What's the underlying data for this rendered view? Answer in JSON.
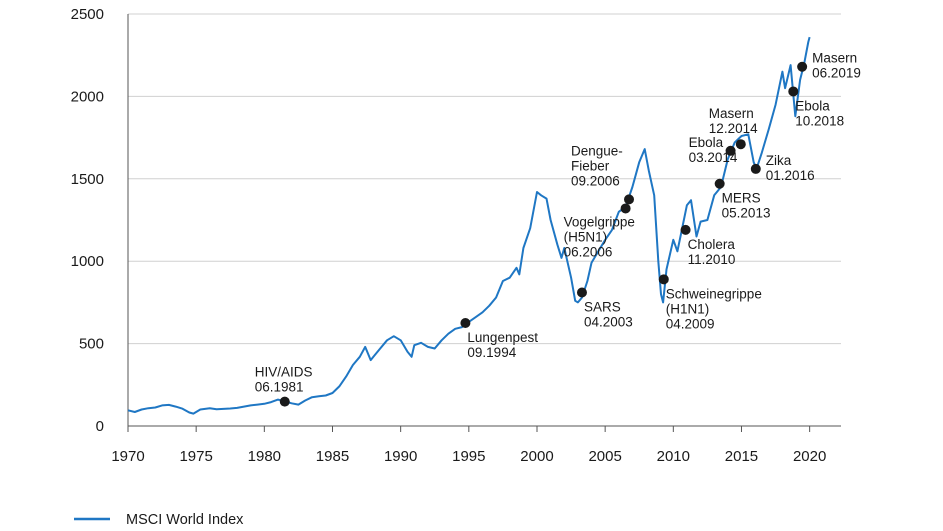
{
  "chart_data": {
    "type": "line",
    "x_ticks": [
      1970,
      1975,
      1980,
      1985,
      1990,
      1995,
      2000,
      2005,
      2010,
      2015,
      2020
    ],
    "y_ticks": [
      0,
      500,
      1000,
      1500,
      2000,
      2500
    ],
    "xlim": [
      1970,
      2022.3
    ],
    "ylim": [
      0,
      2500
    ],
    "grid": "horizontal",
    "legend": "bottom-left",
    "series": [
      {
        "name": "MSCI World Index",
        "color": "#1f77c4",
        "points": [
          [
            1970.0,
            95
          ],
          [
            1970.5,
            85
          ],
          [
            1971.0,
            100
          ],
          [
            1971.5,
            108
          ],
          [
            1972.0,
            112
          ],
          [
            1972.5,
            125
          ],
          [
            1973.0,
            128
          ],
          [
            1973.5,
            118
          ],
          [
            1974.0,
            105
          ],
          [
            1974.5,
            82
          ],
          [
            1974.8,
            75
          ],
          [
            1975.3,
            100
          ],
          [
            1976.0,
            108
          ],
          [
            1976.5,
            102
          ],
          [
            1977.0,
            104
          ],
          [
            1977.5,
            106
          ],
          [
            1978.0,
            110
          ],
          [
            1978.5,
            118
          ],
          [
            1979.0,
            125
          ],
          [
            1979.5,
            130
          ],
          [
            1980.0,
            135
          ],
          [
            1980.5,
            145
          ],
          [
            1981.0,
            160
          ],
          [
            1981.5,
            150
          ],
          [
            1982.0,
            138
          ],
          [
            1982.5,
            130
          ],
          [
            1983.0,
            155
          ],
          [
            1983.5,
            175
          ],
          [
            1984.0,
            180
          ],
          [
            1984.5,
            185
          ],
          [
            1985.0,
            200
          ],
          [
            1985.5,
            240
          ],
          [
            1986.0,
            300
          ],
          [
            1986.5,
            370
          ],
          [
            1987.0,
            420
          ],
          [
            1987.4,
            480
          ],
          [
            1987.8,
            400
          ],
          [
            1988.0,
            420
          ],
          [
            1988.5,
            470
          ],
          [
            1989.0,
            520
          ],
          [
            1989.5,
            545
          ],
          [
            1990.0,
            520
          ],
          [
            1990.5,
            450
          ],
          [
            1990.8,
            420
          ],
          [
            1991.0,
            490
          ],
          [
            1991.5,
            505
          ],
          [
            1992.0,
            480
          ],
          [
            1992.5,
            470
          ],
          [
            1993.0,
            520
          ],
          [
            1993.5,
            560
          ],
          [
            1994.0,
            590
          ],
          [
            1994.5,
            600
          ],
          [
            1994.8,
            620
          ],
          [
            1995.5,
            660
          ],
          [
            1996.0,
            690
          ],
          [
            1996.5,
            730
          ],
          [
            1997.0,
            780
          ],
          [
            1997.5,
            880
          ],
          [
            1998.0,
            900
          ],
          [
            1998.5,
            960
          ],
          [
            1998.7,
            920
          ],
          [
            1999.0,
            1080
          ],
          [
            1999.5,
            1200
          ],
          [
            2000.0,
            1420
          ],
          [
            2000.3,
            1400
          ],
          [
            2000.7,
            1380
          ],
          [
            2001.0,
            1250
          ],
          [
            2001.5,
            1100
          ],
          [
            2001.8,
            1020
          ],
          [
            2002.0,
            1080
          ],
          [
            2002.5,
            900
          ],
          [
            2002.8,
            760
          ],
          [
            2003.0,
            750
          ],
          [
            2003.3,
            780
          ],
          [
            2003.7,
            880
          ],
          [
            2004.0,
            990
          ],
          [
            2004.5,
            1060
          ],
          [
            2005.0,
            1130
          ],
          [
            2005.5,
            1190
          ],
          [
            2006.0,
            1300
          ],
          [
            2006.5,
            1330
          ],
          [
            2007.0,
            1450
          ],
          [
            2007.5,
            1600
          ],
          [
            2007.9,
            1680
          ],
          [
            2008.2,
            1550
          ],
          [
            2008.6,
            1400
          ],
          [
            2008.9,
            1000
          ],
          [
            2009.1,
            800
          ],
          [
            2009.25,
            750
          ],
          [
            2009.5,
            950
          ],
          [
            2010.0,
            1130
          ],
          [
            2010.3,
            1060
          ],
          [
            2010.6,
            1180
          ],
          [
            2011.0,
            1340
          ],
          [
            2011.3,
            1370
          ],
          [
            2011.7,
            1150
          ],
          [
            2012.0,
            1240
          ],
          [
            2012.5,
            1250
          ],
          [
            2013.0,
            1400
          ],
          [
            2013.5,
            1450
          ],
          [
            2014.0,
            1620
          ],
          [
            2014.5,
            1720
          ],
          [
            2015.0,
            1760
          ],
          [
            2015.5,
            1770
          ],
          [
            2015.9,
            1600
          ],
          [
            2016.1,
            1560
          ],
          [
            2016.5,
            1660
          ],
          [
            2017.0,
            1800
          ],
          [
            2017.5,
            1950
          ],
          [
            2018.0,
            2150
          ],
          [
            2018.2,
            2050
          ],
          [
            2018.6,
            2190
          ],
          [
            2018.95,
            1880
          ],
          [
            2019.3,
            2100
          ],
          [
            2019.6,
            2200
          ],
          [
            2019.9,
            2330
          ],
          [
            2020.0,
            2360
          ]
        ]
      }
    ],
    "annotations": [
      {
        "label": "HIV/AIDS\n06.1981",
        "x": 1981.5,
        "y": 148,
        "placement": "above"
      },
      {
        "label": "Lungenpest\n09.1994",
        "x": 1994.75,
        "y": 625,
        "placement": "below-right"
      },
      {
        "label": "SARS\n04.2003",
        "x": 2003.3,
        "y": 810,
        "placement": "below-right"
      },
      {
        "label": "Vogelgrippe\n(H5N1)\n06.2006",
        "x": 2006.5,
        "y": 1320,
        "placement": "below-left"
      },
      {
        "label": "Dengue-\nFieber\n09.2006",
        "x": 2006.75,
        "y": 1375,
        "placement": "above-left"
      },
      {
        "label": "Schweinegrippe\n(H1N1)\n04.2009",
        "x": 2009.3,
        "y": 890,
        "placement": "below-right"
      },
      {
        "label": "Cholera\n11.2010",
        "x": 2010.9,
        "y": 1190,
        "placement": "below-right"
      },
      {
        "label": "MERS\n05.2013",
        "x": 2013.4,
        "y": 1470,
        "placement": "below-right"
      },
      {
        "label": "Ebola\n03.2014",
        "x": 2014.2,
        "y": 1670,
        "placement": "left"
      },
      {
        "label": "Masern\n12.2014",
        "x": 2014.95,
        "y": 1710,
        "placement": "above"
      },
      {
        "label": "Zika\n01.2016",
        "x": 2016.05,
        "y": 1560,
        "placement": "right"
      },
      {
        "label": "Ebola\n10.2018",
        "x": 2018.8,
        "y": 2030,
        "placement": "below-right"
      },
      {
        "label": "Masern\n06.2019",
        "x": 2019.45,
        "y": 2180,
        "placement": "right"
      }
    ]
  }
}
